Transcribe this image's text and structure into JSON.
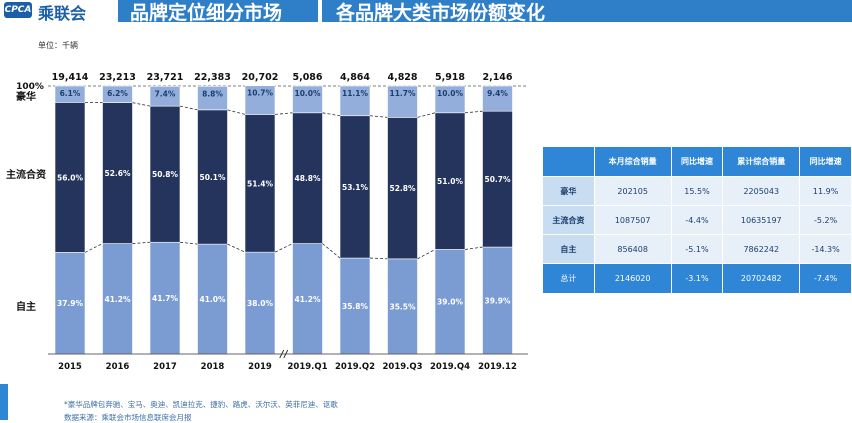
{
  "header": {
    "logo_text": "乘联会",
    "title_left": "品牌定位细分市场",
    "title_right": "各品牌大类市场份额变化"
  },
  "unit_label": "单位：千辆",
  "footnote": "*豪华品牌包奔驰、宝马、奥迪、凯迪拉克、捷豹、路虎、沃尔沃、英菲尼迪、讴歌",
  "footnote2": "数据来源：乘联会市场信息联席会月报",
  "chart_data": {
    "type": "bar",
    "stacked": "percent",
    "categories": [
      "2015",
      "2016",
      "2017",
      "2018",
      "2019",
      "2019.Q1",
      "2019.Q2",
      "2019.Q3",
      "2019.Q4",
      "2019.12"
    ],
    "totals": [
      "19,414",
      "23,213",
      "23,721",
      "22,383",
      "20,702",
      "5,086",
      "4,864",
      "4,828",
      "5,918",
      "2,146"
    ],
    "y_top_label": "100%",
    "series": [
      {
        "name": "自主",
        "color": "#7b9cd3",
        "values": [
          37.9,
          41.2,
          41.7,
          41.0,
          38.0,
          41.2,
          35.8,
          35.5,
          39.0,
          39.9
        ],
        "labels": [
          "37.9%",
          "41.2%",
          "41.7%",
          "41.0%",
          "38.0%",
          "41.2%",
          "35.8%",
          "35.5%",
          "39.0%",
          "39.9%"
        ]
      },
      {
        "name": "主流合资",
        "color": "#24345c",
        "values": [
          56.0,
          52.6,
          50.8,
          50.1,
          51.4,
          48.8,
          53.1,
          52.8,
          51.0,
          50.7
        ],
        "labels": [
          "56.0%",
          "52.6%",
          "50.8%",
          "50.1%",
          "51.4%",
          "48.8%",
          "53.1%",
          "52.8%",
          "51.0%",
          "50.7%"
        ]
      },
      {
        "name": "豪华",
        "color": "#94aedb",
        "values": [
          6.1,
          6.2,
          7.4,
          8.8,
          10.7,
          10.0,
          11.1,
          11.7,
          10.0,
          9.4
        ],
        "labels": [
          "6.1%",
          "6.2%",
          "7.4%",
          "8.8%",
          "10.7%",
          "10.0%",
          "11.1%",
          "11.7%",
          "10.0%",
          "9.4%"
        ]
      }
    ],
    "axis_break_after": "2019"
  },
  "table": {
    "headers": [
      "",
      "本月综合销量",
      "同比增速",
      "累计综合销量",
      "同比增速"
    ],
    "rows": [
      [
        "豪华",
        "202105",
        "15.5%",
        "2205043",
        "11.9%"
      ],
      [
        "主流合资",
        "1087507",
        "-4.4%",
        "10635197",
        "-5.2%"
      ],
      [
        "自主",
        "856408",
        "-5.1%",
        "7862242",
        "-14.3%"
      ]
    ],
    "total": [
      "总计",
      "2146020",
      "-3.1%",
      "20702482",
      "-7.4%"
    ]
  }
}
